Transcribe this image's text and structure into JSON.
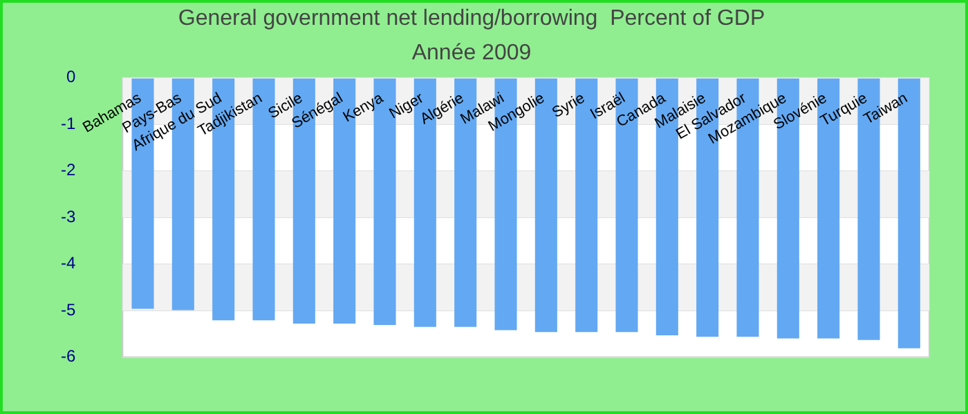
{
  "chart_data": {
    "type": "bar",
    "title": "General government net lending/borrowing  Percent of GDP",
    "subtitle": "Année 2009",
    "categories": [
      "Bahamas",
      "Pays-Bas",
      "Afrique du Sud",
      "Tadjikistan",
      "Sicile",
      "Sénégal",
      "Kenya",
      "Niger",
      "Algérie",
      "Malawi",
      "Mongolie",
      "Syrie",
      "Israël",
      "Canada",
      "Malaisie",
      "El Salvador",
      "Mozambique",
      "Slovénie",
      "Turquie",
      "Taiwan"
    ],
    "values": [
      -4.96,
      -4.99,
      -5.21,
      -5.21,
      -5.28,
      -5.28,
      -5.31,
      -5.35,
      -5.35,
      -5.42,
      -5.46,
      -5.46,
      -5.46,
      -5.53,
      -5.56,
      -5.56,
      -5.6,
      -5.6,
      -5.63,
      -5.81
    ],
    "color": "#63a8f2",
    "ylim": [
      -6,
      0
    ],
    "yticks": [
      -6,
      -5,
      -4,
      -3,
      -2,
      -1,
      0
    ],
    "grid": "y",
    "legend": false
  }
}
